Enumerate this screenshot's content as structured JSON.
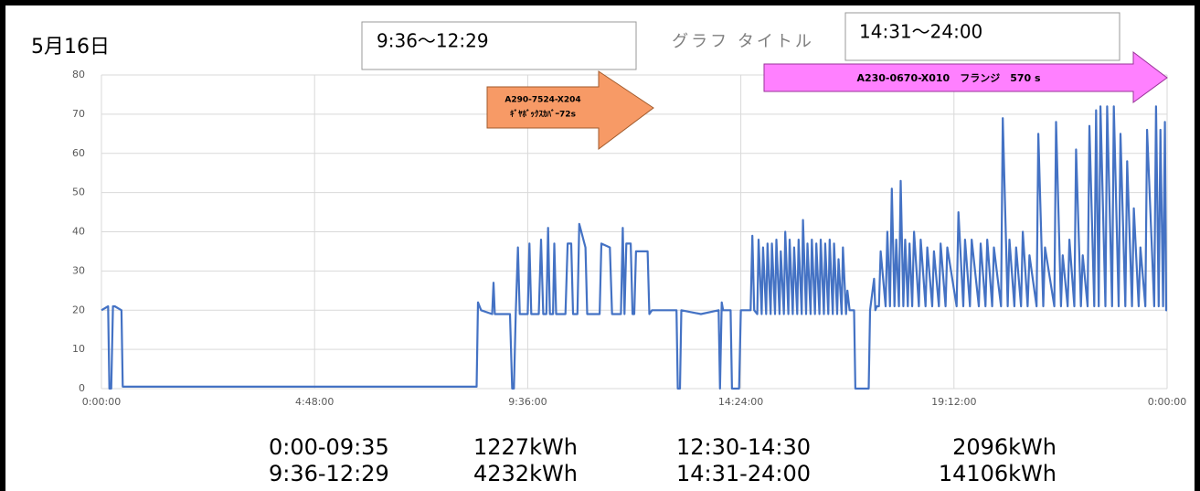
{
  "chart_data": {
    "type": "line",
    "title": "グラフ タイトル",
    "date_label": "5月16日",
    "boxes": [
      "9:36〜12:29",
      "14:31〜24:00"
    ],
    "arrows": [
      {
        "lines": [
          "A290-7524-X204",
          "ｷﾞﾔﾎﾞｯｸｽｶﾊﾞｰ72s"
        ],
        "color": "#f79a66"
      },
      {
        "lines": [
          "A230-0670-X010　フランジ　570 s"
        ],
        "color": "#ff80ff"
      }
    ],
    "summary": [
      [
        "0:00-09:35",
        "1227kWh",
        "12:30-14:30",
        "2096kWh"
      ],
      [
        "9:36-12:29",
        "4232kWh",
        "14:31-24:00",
        "14106kWh"
      ]
    ],
    "color": "#4472c4",
    "xlim": [
      0,
      24
    ],
    "xticks": [
      {
        "value": 0,
        "label": "0:00:00"
      },
      {
        "value": 4.8,
        "label": "4:48:00"
      },
      {
        "value": 9.6,
        "label": "9:36:00"
      },
      {
        "value": 14.4,
        "label": "14:24:00"
      },
      {
        "value": 19.2,
        "label": "19:12:00"
      },
      {
        "value": 24,
        "label": "0:00:00"
      }
    ],
    "ylim": [
      0,
      80
    ],
    "yticks": [
      0,
      10,
      20,
      30,
      40,
      50,
      60,
      70,
      80
    ],
    "grid": true,
    "x": [
      0,
      0.15,
      0.18,
      0.22,
      0.26,
      0.3,
      0.45,
      0.48,
      8.45,
      8.48,
      8.55,
      8.8,
      8.83,
      8.86,
      9.2,
      9.25,
      9.29,
      9.33,
      9.38,
      9.42,
      9.6,
      9.64,
      9.68,
      9.85,
      9.9,
      9.95,
      10.02,
      10.06,
      10.1,
      10.17,
      10.2,
      10.24,
      10.45,
      10.5,
      10.58,
      10.62,
      10.72,
      10.76,
      10.9,
      10.94,
      11.22,
      11.26,
      11.45,
      11.5,
      11.7,
      11.74,
      11.78,
      11.82,
      11.92,
      11.96,
      12.0,
      12.04,
      12.3,
      12.34,
      12.4,
      12.95,
      12.98,
      13.03,
      13.06,
      13.5,
      13.9,
      13.93,
      13.97,
      14.0,
      14.17,
      14.2,
      14.36,
      14.4,
      14.62,
      14.66,
      14.7,
      14.77,
      14.8,
      14.87,
      14.9,
      14.97,
      15.0,
      15.07,
      15.1,
      15.17,
      15.2,
      15.27,
      15.3,
      15.37,
      15.4,
      15.47,
      15.5,
      15.57,
      15.6,
      15.67,
      15.7,
      15.77,
      15.8,
      15.87,
      15.9,
      15.97,
      16.0,
      16.07,
      16.1,
      16.17,
      16.2,
      16.27,
      16.3,
      16.37,
      16.4,
      16.47,
      16.5,
      16.57,
      16.6,
      16.67,
      16.7,
      16.77,
      16.8,
      16.85,
      16.95,
      16.98,
      17.28,
      17.31,
      17.4,
      17.43,
      17.46,
      17.51,
      17.55,
      17.66,
      17.7,
      17.76,
      17.8,
      17.86,
      17.9,
      17.96,
      18.0,
      18.06,
      18.1,
      18.16,
      18.2,
      18.26,
      18.3,
      18.41,
      18.45,
      18.56,
      18.6,
      18.71,
      18.75,
      18.86,
      18.9,
      19.01,
      19.05,
      19.26,
      19.3,
      19.41,
      19.45,
      19.56,
      19.6,
      19.76,
      19.8,
      19.91,
      19.95,
      20.06,
      20.1,
      20.26,
      20.3,
      20.41,
      20.45,
      20.56,
      20.6,
      20.71,
      20.75,
      20.86,
      20.9,
      21.06,
      21.1,
      21.21,
      21.25,
      21.46,
      21.5,
      21.61,
      21.65,
      21.76,
      21.8,
      21.91,
      21.95,
      22.06,
      22.1,
      22.21,
      22.25,
      22.36,
      22.4,
      22.46,
      22.5,
      22.61,
      22.65,
      22.76,
      22.8,
      22.91,
      22.95,
      23.06,
      23.1,
      23.21,
      23.25,
      23.36,
      23.4,
      23.51,
      23.55,
      23.71,
      23.75,
      23.81,
      23.85,
      23.91,
      23.95,
      23.98,
      24
    ],
    "values": [
      20,
      21,
      0,
      0,
      21,
      21,
      20,
      0.5,
      0.5,
      22,
      20,
      19,
      27,
      19,
      19,
      0,
      0,
      19,
      36,
      19,
      19,
      37,
      19,
      19,
      38,
      19,
      19,
      41,
      19,
      19,
      37,
      19,
      19,
      37,
      37,
      19,
      19,
      42,
      36,
      19,
      19,
      37,
      36,
      19,
      19,
      41,
      19,
      37,
      37,
      19,
      19,
      35,
      35,
      19,
      20,
      20,
      0,
      0,
      20,
      19,
      20,
      0,
      22,
      20,
      20,
      0,
      0,
      20,
      20,
      39,
      20,
      19,
      38,
      19,
      36,
      19,
      37,
      19,
      37,
      19,
      38,
      19,
      35,
      19,
      40,
      19,
      38,
      19,
      36,
      19,
      38,
      19,
      43,
      19,
      37,
      19,
      38,
      19,
      37,
      19,
      38,
      19,
      37,
      19,
      38,
      19,
      37,
      19,
      33,
      19,
      36,
      19,
      25,
      20,
      20,
      0,
      0,
      20,
      28,
      20,
      21,
      21,
      35,
      21,
      40,
      21,
      51,
      21,
      38,
      21,
      53,
      21,
      38,
      21,
      37,
      21,
      40,
      21,
      38,
      21,
      36,
      21,
      35,
      21,
      37,
      21,
      36,
      21,
      45,
      21,
      38,
      21,
      38,
      21,
      37,
      21,
      38,
      21,
      36,
      21,
      69,
      21,
      38,
      21,
      36,
      21,
      40,
      21,
      34,
      21,
      65,
      21,
      36,
      21,
      68,
      21,
      34,
      21,
      38,
      21,
      61,
      21,
      34,
      21,
      67,
      21,
      71,
      21,
      72,
      21,
      72,
      21,
      72,
      21,
      65,
      21,
      58,
      21,
      46,
      21,
      36,
      21,
      66,
      21,
      72,
      21,
      66,
      21,
      68,
      20,
      20
    ]
  }
}
